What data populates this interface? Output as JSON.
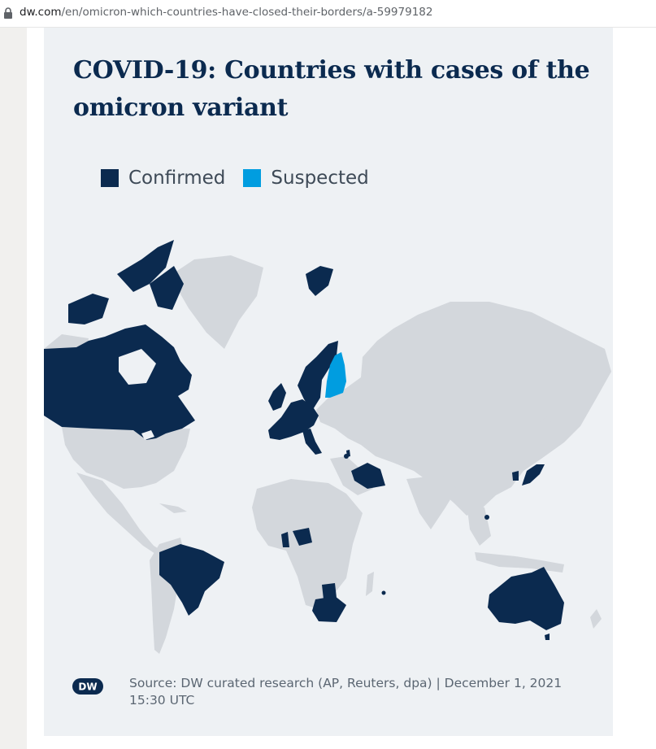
{
  "browser": {
    "url_host": "dw.com",
    "url_path": "/en/omicron-which-countries-have-closed-their-borders/a-59979182"
  },
  "infographic": {
    "title": "COVID-19: Countries with cases of the omicron variant",
    "legend": [
      {
        "label": "Confirmed",
        "color": "#0b2a4f"
      },
      {
        "label": "Suspected",
        "color": "#009de0"
      }
    ],
    "source": "Source: DW curated research (AP, Reuters, dpa) | December 1, 2021 15:30 UTC",
    "logo_text": "DW"
  },
  "map": {
    "land_color": "#d3d7dc",
    "confirmed_color": "#0b2a4f",
    "suspected_color": "#009de0",
    "confirmed_regions": [
      "Canada",
      "Brazil",
      "United Kingdom",
      "Portugal",
      "Spain",
      "France",
      "Belgium",
      "Netherlands",
      "Germany",
      "Switzerland",
      "Italy",
      "Austria",
      "Czech Republic",
      "Denmark",
      "Sweden",
      "Norway",
      "Svalbard",
      "Israel",
      "Saudi Arabia",
      "Nigeria",
      "Ghana",
      "Botswana",
      "South Africa",
      "Reunion",
      "Hong Kong",
      "South Korea",
      "Japan",
      "Australia"
    ],
    "suspected_regions": [
      "Finland"
    ]
  }
}
